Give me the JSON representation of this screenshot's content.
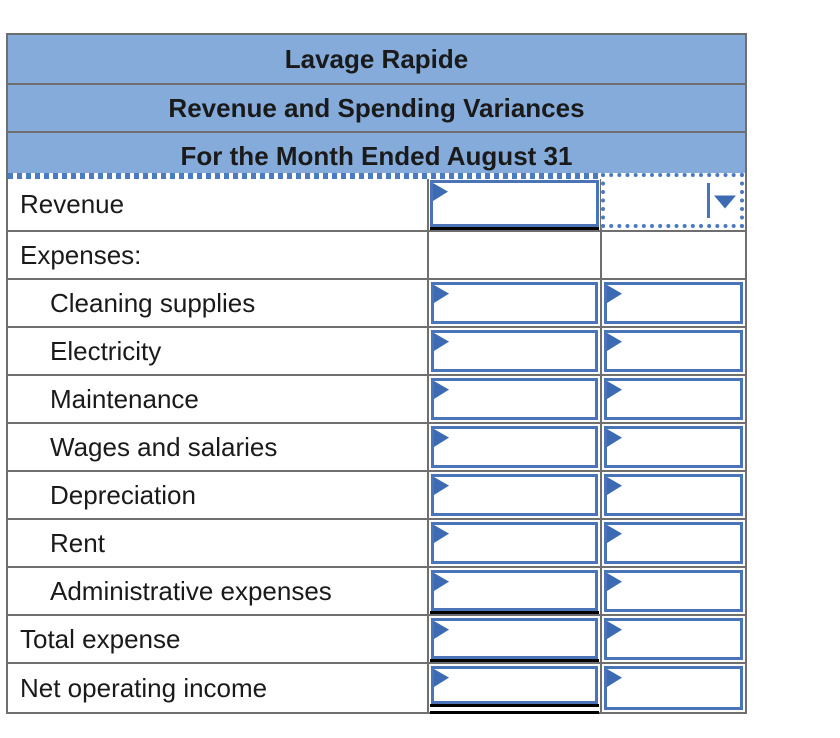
{
  "header": {
    "line1": "Lavage Rapide",
    "line2": "Revenue and Spending Variances",
    "line3": "For the Month Ended August 31"
  },
  "table": {
    "rows": [
      {
        "label": "Revenue",
        "kind": "revenue",
        "amount_value": "",
        "dropdown_value": ""
      },
      {
        "label": "Expenses:",
        "kind": "section"
      },
      {
        "label": "Cleaning supplies",
        "kind": "item",
        "amount_value": "",
        "variance_value": ""
      },
      {
        "label": "Electricity",
        "kind": "item",
        "amount_value": "",
        "variance_value": ""
      },
      {
        "label": "Maintenance",
        "kind": "item",
        "amount_value": "",
        "variance_value": ""
      },
      {
        "label": "Wages and salaries",
        "kind": "item",
        "amount_value": "",
        "variance_value": ""
      },
      {
        "label": "Depreciation",
        "kind": "item",
        "amount_value": "",
        "variance_value": ""
      },
      {
        "label": "Rent",
        "kind": "item",
        "amount_value": "",
        "variance_value": ""
      },
      {
        "label": "Administrative expenses",
        "kind": "item",
        "amount_value": "",
        "variance_value": ""
      },
      {
        "label": "Total expense",
        "kind": "total",
        "amount_value": "",
        "variance_value": ""
      },
      {
        "label": "Net operating income",
        "kind": "net",
        "amount_value": "",
        "variance_value": ""
      }
    ]
  },
  "icons": {
    "input_marker": "flag-marker-icon",
    "dropdown_arrow": "triangle-down-icon"
  },
  "colors": {
    "header_bg": "#85abdb",
    "grid_border": "#6f6f6f",
    "input_border": "#4a73b8",
    "marker_blue": "#3d6bb3",
    "dotted_selection": "#4a7bc0",
    "rule_black": "#000000",
    "text": "#1a1a1a"
  }
}
